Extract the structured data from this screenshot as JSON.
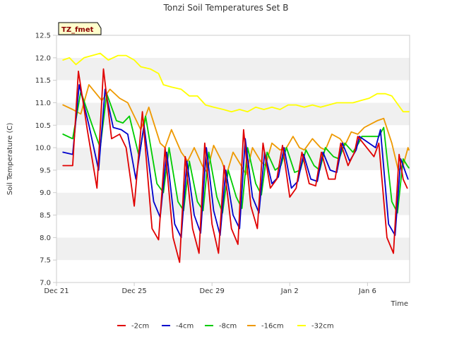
{
  "chart_data": {
    "type": "line",
    "title": "Tonzi Soil Temperatures Set B",
    "xlabel": "Time",
    "ylabel": "Soil Temperature (C)",
    "badge": "TZ_fmet",
    "xlim": [
      "2017-12-21",
      "2018-01-08T04:00"
    ],
    "ylim": [
      7.0,
      12.5
    ],
    "x_ticks": [
      {
        "label": "Dec 21",
        "date": "2017-12-21"
      },
      {
        "label": "Dec 25",
        "date": "2017-12-25"
      },
      {
        "label": "Dec 29",
        "date": "2017-12-29"
      },
      {
        "label": "Jan 2",
        "date": "2018-01-02"
      },
      {
        "label": "Jan 6",
        "date": "2018-01-06"
      }
    ],
    "y_ticks": [
      "7.0",
      "7.5",
      "8.0",
      "8.5",
      "9.0",
      "9.5",
      "10.0",
      "10.5",
      "11.0",
      "11.5",
      "12.0",
      "12.5"
    ],
    "grid": "horizontal bands",
    "legend_position": "bottom",
    "series": [
      {
        "name": "-2cm",
        "color": "#e00000",
        "points": [
          [
            "2017-12-21T08:00",
            9.6
          ],
          [
            "2017-12-21T20:00",
            9.6
          ],
          [
            "2017-12-22T03:00",
            11.7
          ],
          [
            "2017-12-22T14:00",
            10.4
          ],
          [
            "2017-12-23T02:00",
            9.1
          ],
          [
            "2017-12-23T10:00",
            11.75
          ],
          [
            "2017-12-23T20:00",
            10.2
          ],
          [
            "2017-12-24T06:00",
            10.3
          ],
          [
            "2017-12-24T14:00",
            10.0
          ],
          [
            "2017-12-25T00:00",
            8.7
          ],
          [
            "2017-12-25T10:00",
            10.8
          ],
          [
            "2017-12-25T22:00",
            8.2
          ],
          [
            "2017-12-26T06:00",
            7.95
          ],
          [
            "2017-12-26T14:00",
            10.0
          ],
          [
            "2017-12-27T00:00",
            8.0
          ],
          [
            "2017-12-27T08:00",
            7.45
          ],
          [
            "2017-12-27T15:00",
            9.8
          ],
          [
            "2017-12-28T00:00",
            8.2
          ],
          [
            "2017-12-28T08:00",
            7.65
          ],
          [
            "2017-12-28T15:00",
            10.1
          ],
          [
            "2017-12-29T00:00",
            8.3
          ],
          [
            "2017-12-29T08:00",
            7.65
          ],
          [
            "2017-12-29T15:00",
            9.6
          ],
          [
            "2017-12-30T00:00",
            8.2
          ],
          [
            "2017-12-30T08:00",
            7.85
          ],
          [
            "2017-12-30T15:00",
            10.4
          ],
          [
            "2017-12-31T00:00",
            8.7
          ],
          [
            "2017-12-31T08:00",
            8.2
          ],
          [
            "2017-12-31T15:00",
            10.1
          ],
          [
            "2018-01-01T00:00",
            9.1
          ],
          [
            "2018-01-01T08:00",
            9.3
          ],
          [
            "2018-01-01T15:00",
            10.05
          ],
          [
            "2018-01-02T00:00",
            8.9
          ],
          [
            "2018-01-02T08:00",
            9.1
          ],
          [
            "2018-01-02T15:00",
            9.9
          ],
          [
            "2018-01-03T00:00",
            9.2
          ],
          [
            "2018-01-03T08:00",
            9.15
          ],
          [
            "2018-01-03T15:00",
            9.9
          ],
          [
            "2018-01-04T00:00",
            9.3
          ],
          [
            "2018-01-04T08:00",
            9.3
          ],
          [
            "2018-01-04T15:00",
            10.1
          ],
          [
            "2018-01-05T00:00",
            9.6
          ],
          [
            "2018-01-05T08:00",
            9.9
          ],
          [
            "2018-01-05T12:00",
            10.25
          ],
          [
            "2018-01-06T08:00",
            9.8
          ],
          [
            "2018-01-06T14:00",
            10.1
          ],
          [
            "2018-01-07T00:00",
            8.0
          ],
          [
            "2018-01-07T08:00",
            7.65
          ],
          [
            "2018-01-07T15:00",
            9.85
          ],
          [
            "2018-01-07T20:00",
            9.3
          ],
          [
            "2018-01-08T01:00",
            9.1
          ]
        ]
      },
      {
        "name": "-4cm",
        "color": "#0000cc",
        "points": [
          [
            "2017-12-21T08:00",
            9.9
          ],
          [
            "2017-12-21T20:00",
            9.85
          ],
          [
            "2017-12-22T04:00",
            11.4
          ],
          [
            "2017-12-22T16:00",
            10.5
          ],
          [
            "2017-12-23T04:00",
            9.5
          ],
          [
            "2017-12-23T12:00",
            11.3
          ],
          [
            "2017-12-23T22:00",
            10.45
          ],
          [
            "2017-12-24T08:00",
            10.4
          ],
          [
            "2017-12-24T16:00",
            10.3
          ],
          [
            "2017-12-25T02:00",
            9.3
          ],
          [
            "2017-12-25T12:00",
            10.5
          ],
          [
            "2017-12-26T00:00",
            8.8
          ],
          [
            "2017-12-26T08:00",
            8.45
          ],
          [
            "2017-12-26T16:00",
            9.9
          ],
          [
            "2017-12-27T02:00",
            8.3
          ],
          [
            "2017-12-27T10:00",
            8.0
          ],
          [
            "2017-12-27T17:00",
            9.7
          ],
          [
            "2017-12-28T02:00",
            8.5
          ],
          [
            "2017-12-28T10:00",
            8.1
          ],
          [
            "2017-12-28T17:00",
            10.0
          ],
          [
            "2017-12-29T02:00",
            8.6
          ],
          [
            "2017-12-29T10:00",
            8.05
          ],
          [
            "2017-12-29T17:00",
            9.5
          ],
          [
            "2017-12-30T02:00",
            8.5
          ],
          [
            "2017-12-30T10:00",
            8.2
          ],
          [
            "2017-12-30T17:00",
            10.2
          ],
          [
            "2017-12-31T02:00",
            8.9
          ],
          [
            "2017-12-31T10:00",
            8.55
          ],
          [
            "2017-12-31T17:00",
            9.9
          ],
          [
            "2018-01-01T02:00",
            9.2
          ],
          [
            "2018-01-01T10:00",
            9.35
          ],
          [
            "2018-01-01T17:00",
            10.0
          ],
          [
            "2018-01-02T02:00",
            9.1
          ],
          [
            "2018-01-02T10:00",
            9.25
          ],
          [
            "2018-01-02T17:00",
            9.85
          ],
          [
            "2018-01-03T02:00",
            9.3
          ],
          [
            "2018-01-03T10:00",
            9.25
          ],
          [
            "2018-01-03T17:00",
            9.9
          ],
          [
            "2018-01-04T02:00",
            9.5
          ],
          [
            "2018-01-04T10:00",
            9.45
          ],
          [
            "2018-01-04T17:00",
            10.1
          ],
          [
            "2018-01-05T02:00",
            9.7
          ],
          [
            "2018-01-05T10:00",
            9.95
          ],
          [
            "2018-01-05T14:00",
            10.25
          ],
          [
            "2018-01-06T10:00",
            10.0
          ],
          [
            "2018-01-06T16:00",
            10.4
          ],
          [
            "2018-01-07T02:00",
            8.3
          ],
          [
            "2018-01-07T10:00",
            8.05
          ],
          [
            "2018-01-07T17:00",
            9.75
          ],
          [
            "2018-01-07T22:00",
            9.5
          ],
          [
            "2018-01-08T02:00",
            9.3
          ]
        ]
      },
      {
        "name": "-8cm",
        "color": "#00cc00",
        "points": [
          [
            "2017-12-21T08:00",
            10.3
          ],
          [
            "2017-12-21T20:00",
            10.2
          ],
          [
            "2017-12-22T06:00",
            11.25
          ],
          [
            "2017-12-22T20:00",
            10.5
          ],
          [
            "2017-12-23T06:00",
            10.0
          ],
          [
            "2017-12-23T14:00",
            11.2
          ],
          [
            "2017-12-24T02:00",
            10.6
          ],
          [
            "2017-12-24T10:00",
            10.55
          ],
          [
            "2017-12-24T18:00",
            10.7
          ],
          [
            "2017-12-25T06:00",
            9.8
          ],
          [
            "2017-12-25T14:00",
            10.7
          ],
          [
            "2017-12-26T04:00",
            9.2
          ],
          [
            "2017-12-26T12:00",
            9.0
          ],
          [
            "2017-12-26T19:00",
            10.0
          ],
          [
            "2017-12-27T06:00",
            8.8
          ],
          [
            "2017-12-27T13:00",
            8.6
          ],
          [
            "2017-12-27T20:00",
            9.7
          ],
          [
            "2017-12-28T06:00",
            8.8
          ],
          [
            "2017-12-28T13:00",
            8.6
          ],
          [
            "2017-12-28T20:00",
            9.9
          ],
          [
            "2017-12-29T06:00",
            8.9
          ],
          [
            "2017-12-29T13:00",
            8.55
          ],
          [
            "2017-12-29T20:00",
            9.5
          ],
          [
            "2017-12-30T06:00",
            8.9
          ],
          [
            "2017-12-30T13:00",
            8.65
          ],
          [
            "2017-12-30T20:00",
            10.0
          ],
          [
            "2017-12-31T06:00",
            9.2
          ],
          [
            "2017-12-31T13:00",
            8.95
          ],
          [
            "2017-12-31T20:00",
            9.9
          ],
          [
            "2018-01-01T06:00",
            9.5
          ],
          [
            "2018-01-01T13:00",
            9.6
          ],
          [
            "2018-01-01T20:00",
            10.0
          ],
          [
            "2018-01-02T06:00",
            9.45
          ],
          [
            "2018-01-02T13:00",
            9.5
          ],
          [
            "2018-01-02T20:00",
            9.95
          ],
          [
            "2018-01-03T06:00",
            9.6
          ],
          [
            "2018-01-03T13:00",
            9.5
          ],
          [
            "2018-01-03T20:00",
            10.0
          ],
          [
            "2018-01-04T06:00",
            9.8
          ],
          [
            "2018-01-04T13:00",
            9.75
          ],
          [
            "2018-01-04T20:00",
            10.1
          ],
          [
            "2018-01-05T06:00",
            9.9
          ],
          [
            "2018-01-05T13:00",
            10.1
          ],
          [
            "2018-01-05T17:00",
            10.25
          ],
          [
            "2018-01-06T14:00",
            10.25
          ],
          [
            "2018-01-06T20:00",
            10.45
          ],
          [
            "2018-01-07T06:00",
            8.8
          ],
          [
            "2018-01-07T13:00",
            8.55
          ],
          [
            "2018-01-07T20:00",
            9.75
          ],
          [
            "2018-01-08T01:00",
            9.6
          ],
          [
            "2018-01-08T03:00",
            9.55
          ]
        ]
      },
      {
        "name": "-16cm",
        "color": "#ee9900",
        "points": [
          [
            "2017-12-21T08:00",
            10.95
          ],
          [
            "2017-12-21T20:00",
            10.85
          ],
          [
            "2017-12-22T06:00",
            10.75
          ],
          [
            "2017-12-22T16:00",
            11.4
          ],
          [
            "2017-12-23T08:00",
            11.05
          ],
          [
            "2017-12-23T18:00",
            11.3
          ],
          [
            "2017-12-24T06:00",
            11.1
          ],
          [
            "2017-12-24T16:00",
            11.0
          ],
          [
            "2017-12-25T00:00",
            10.7
          ],
          [
            "2017-12-25T08:00",
            10.4
          ],
          [
            "2017-12-25T18:00",
            10.9
          ],
          [
            "2017-12-26T08:00",
            10.1
          ],
          [
            "2017-12-26T14:00",
            10.0
          ],
          [
            "2017-12-26T22:00",
            10.4
          ],
          [
            "2017-12-27T10:00",
            9.9
          ],
          [
            "2017-12-27T18:00",
            9.7
          ],
          [
            "2017-12-28T02:00",
            10.0
          ],
          [
            "2017-12-28T12:00",
            9.6
          ],
          [
            "2017-12-28T18:00",
            9.45
          ],
          [
            "2017-12-29T02:00",
            10.05
          ],
          [
            "2017-12-29T12:00",
            9.7
          ],
          [
            "2017-12-29T18:00",
            9.4
          ],
          [
            "2017-12-30T02:00",
            9.9
          ],
          [
            "2017-12-30T12:00",
            9.6
          ],
          [
            "2017-12-30T18:00",
            9.4
          ],
          [
            "2017-12-31T02:00",
            10.0
          ],
          [
            "2017-12-31T12:00",
            9.7
          ],
          [
            "2017-12-31T18:00",
            9.6
          ],
          [
            "2018-01-01T02:00",
            10.1
          ],
          [
            "2018-01-01T12:00",
            9.95
          ],
          [
            "2018-01-01T20:00",
            10.0
          ],
          [
            "2018-01-02T04:00",
            10.25
          ],
          [
            "2018-01-02T12:00",
            10.0
          ],
          [
            "2018-01-02T18:00",
            9.95
          ],
          [
            "2018-01-03T04:00",
            10.2
          ],
          [
            "2018-01-03T14:00",
            10.0
          ],
          [
            "2018-01-03T20:00",
            9.95
          ],
          [
            "2018-01-04T04:00",
            10.3
          ],
          [
            "2018-01-04T14:00",
            10.2
          ],
          [
            "2018-01-04T20:00",
            10.05
          ],
          [
            "2018-01-05T04:00",
            10.35
          ],
          [
            "2018-01-05T12:00",
            10.3
          ],
          [
            "2018-01-05T20:00",
            10.45
          ],
          [
            "2018-01-06T12:00",
            10.6
          ],
          [
            "2018-01-06T20:00",
            10.65
          ],
          [
            "2018-01-07T06:00",
            10.1
          ],
          [
            "2018-01-07T14:00",
            9.5
          ],
          [
            "2018-01-07T20:00",
            9.6
          ],
          [
            "2018-01-08T02:00",
            10.0
          ],
          [
            "2018-01-08T03:00",
            9.95
          ]
        ]
      },
      {
        "name": "-32cm",
        "color": "#ffff00",
        "points": [
          [
            "2017-12-21T08:00",
            11.95
          ],
          [
            "2017-12-21T16:00",
            12.0
          ],
          [
            "2017-12-22T00:00",
            11.85
          ],
          [
            "2017-12-22T10:00",
            12.0
          ],
          [
            "2017-12-22T20:00",
            12.05
          ],
          [
            "2017-12-23T06:00",
            12.1
          ],
          [
            "2017-12-23T16:00",
            11.95
          ],
          [
            "2017-12-24T04:00",
            12.05
          ],
          [
            "2017-12-24T14:00",
            12.05
          ],
          [
            "2017-12-25T00:00",
            11.95
          ],
          [
            "2017-12-25T08:00",
            11.8
          ],
          [
            "2017-12-25T20:00",
            11.75
          ],
          [
            "2017-12-26T06:00",
            11.65
          ],
          [
            "2017-12-26T12:00",
            11.4
          ],
          [
            "2017-12-26T22:00",
            11.35
          ],
          [
            "2017-12-27T10:00",
            11.3
          ],
          [
            "2017-12-27T20:00",
            11.15
          ],
          [
            "2017-12-28T06:00",
            11.15
          ],
          [
            "2017-12-28T16:00",
            10.95
          ],
          [
            "2017-12-29T02:00",
            10.9
          ],
          [
            "2017-12-29T14:00",
            10.85
          ],
          [
            "2017-12-30T00:00",
            10.8
          ],
          [
            "2017-12-30T10:00",
            10.85
          ],
          [
            "2017-12-30T20:00",
            10.8
          ],
          [
            "2017-12-31T06:00",
            10.9
          ],
          [
            "2017-12-31T16:00",
            10.85
          ],
          [
            "2018-01-01T02:00",
            10.9
          ],
          [
            "2018-01-01T12:00",
            10.85
          ],
          [
            "2018-01-01T22:00",
            10.95
          ],
          [
            "2018-01-02T08:00",
            10.95
          ],
          [
            "2018-01-02T18:00",
            10.9
          ],
          [
            "2018-01-03T04:00",
            10.95
          ],
          [
            "2018-01-03T14:00",
            10.9
          ],
          [
            "2018-01-04T00:00",
            10.95
          ],
          [
            "2018-01-04T10:00",
            11.0
          ],
          [
            "2018-01-04T20:00",
            11.0
          ],
          [
            "2018-01-05T06:00",
            11.0
          ],
          [
            "2018-01-05T16:00",
            11.05
          ],
          [
            "2018-01-06T02:00",
            11.1
          ],
          [
            "2018-01-06T12:00",
            11.2
          ],
          [
            "2018-01-06T22:00",
            11.2
          ],
          [
            "2018-01-07T06:00",
            11.15
          ],
          [
            "2018-01-07T14:00",
            10.95
          ],
          [
            "2018-01-07T20:00",
            10.8
          ],
          [
            "2018-01-08T03:00",
            10.8
          ]
        ]
      }
    ]
  }
}
